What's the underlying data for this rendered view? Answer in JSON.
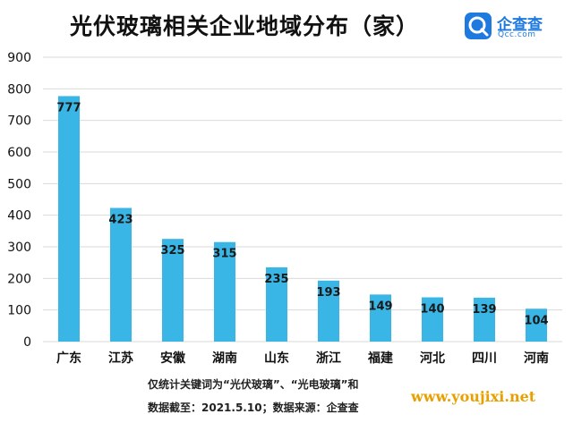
{
  "chart_data": {
    "type": "bar",
    "title": "光伏玻璃相关企业地域分布（家）",
    "categories": [
      "广东",
      "江苏",
      "安徽",
      "湖南",
      "山东",
      "浙江",
      "福建",
      "河北",
      "四川",
      "河南"
    ],
    "values": [
      777,
      423,
      325,
      315,
      235,
      193,
      149,
      140,
      139,
      104
    ],
    "ylim": [
      0,
      900
    ],
    "yticks": [
      0,
      100,
      200,
      300,
      400,
      500,
      600,
      700,
      800,
      900
    ],
    "xlabel": "",
    "ylabel": "",
    "grid": true,
    "bar_color": "#3ab6e6",
    "grid_color": "#d9d9d9"
  },
  "logo": {
    "name": "企查查",
    "url": "Qcc.com",
    "color": "#1f7ae0"
  },
  "notes": {
    "line1": "仅统计关键词为“光伏玻璃”、“光电玻璃”和",
    "line2": "数据截至：2021.5.10；数据来源：企查查"
  },
  "watermark": "www.youjixi.net"
}
